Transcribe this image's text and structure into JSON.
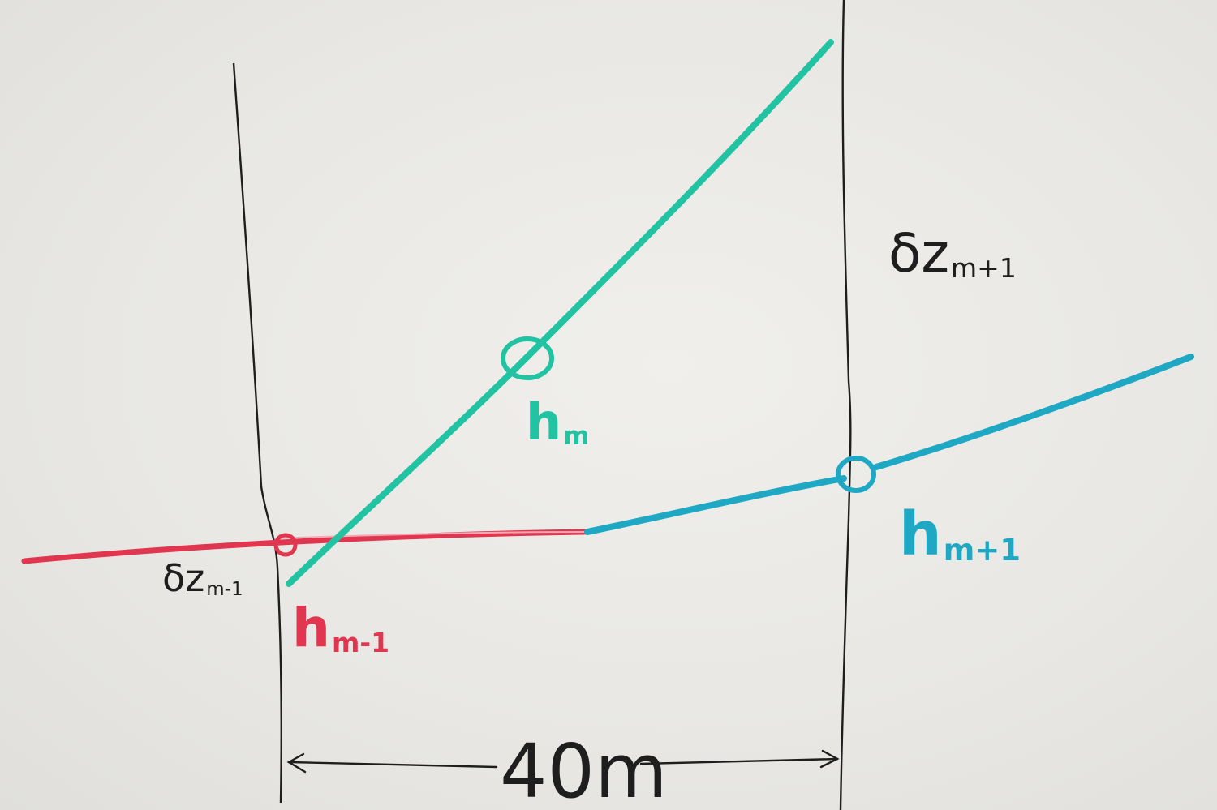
{
  "labels": {
    "dz_top": {
      "main": "δz",
      "sub": "m+1"
    },
    "dz_bottom": {
      "main": "δz",
      "sub": "m-1"
    },
    "h_m": {
      "main": "h",
      "sub": "m"
    },
    "h_m_plus_1": {
      "main": "h",
      "sub": "m+1"
    },
    "h_m_minus_1": {
      "main": "h",
      "sub": "m-1"
    },
    "distance": "40m"
  },
  "colors": {
    "black_ink": "#1e1e1e",
    "green_ink": "#22c3a2",
    "blue_ink": "#1fa8c4",
    "red_ink": "#e0364f"
  }
}
